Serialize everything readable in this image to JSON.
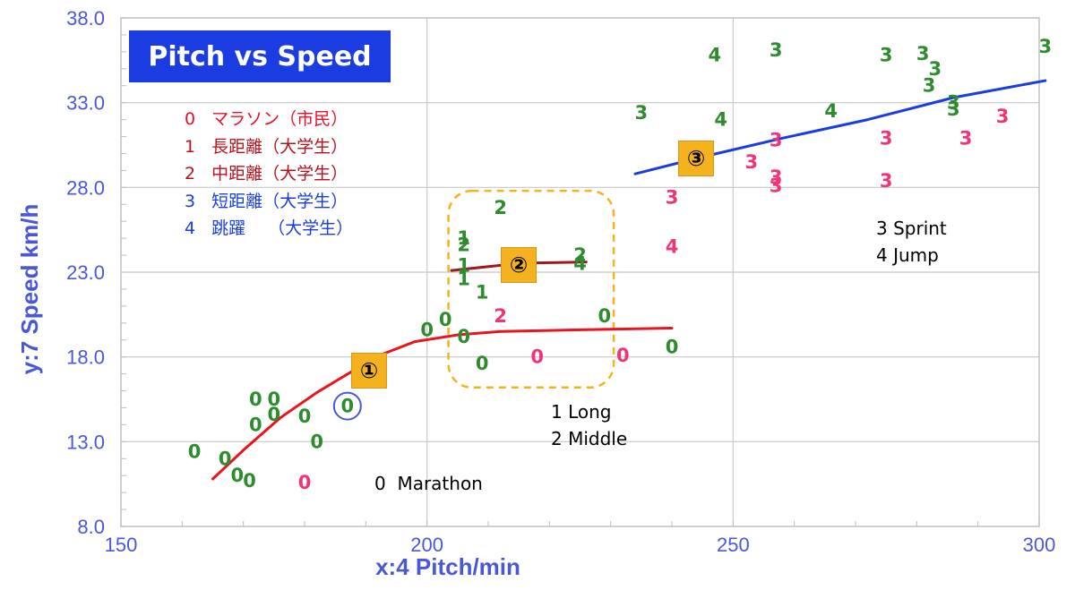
{
  "title": "Pitch vs Speed",
  "legend": [
    {
      "code": "0",
      "text": "マラソン（市民）",
      "color": "#e8102a"
    },
    {
      "code": "1",
      "text": "長距離（大学生）",
      "color": "#b8101c"
    },
    {
      "code": "2",
      "text": "中距離（大学生）",
      "color": "#b8101c"
    },
    {
      "code": "3",
      "text": "短距離（大学生）",
      "color": "#1a3ce0"
    },
    {
      "code": "4",
      "text": "跳躍　 （大学生）",
      "color": "#1a3ce0"
    }
  ],
  "annotations": {
    "marathon": "0  Marathon",
    "long_middle": "1 Long\n2 Middle",
    "sprint_jump": "3 Sprint\n4 Jump"
  },
  "badges": [
    "①",
    "②",
    "③"
  ],
  "chart_data": {
    "type": "scatter",
    "title": "Pitch vs Speed",
    "xlabel": "x:4 Pitch/min",
    "ylabel": "y:7 Speed km/h",
    "xlim": [
      150,
      300
    ],
    "ylim": [
      8.0,
      38.0
    ],
    "xticks": [
      "150",
      "200",
      "250",
      "300"
    ],
    "yticks": [
      "8.0",
      "13.0",
      "18.0",
      "23.0",
      "28.0",
      "33.0",
      "38.0"
    ],
    "grid": true,
    "colors": {
      "green": "#2e8b2e",
      "pink": "#f0337a",
      "red": "#e8141e",
      "darkred": "#a01820",
      "blue": "#1a3ce0"
    },
    "points": [
      {
        "label": "0",
        "x": 162,
        "y": 12.4,
        "color": "green"
      },
      {
        "label": "0",
        "x": 167,
        "y": 12.0,
        "color": "green"
      },
      {
        "label": "0",
        "x": 169,
        "y": 11.0,
        "color": "green"
      },
      {
        "label": "0",
        "x": 171,
        "y": 10.7,
        "color": "green"
      },
      {
        "label": "0",
        "x": 172,
        "y": 15.5,
        "color": "green"
      },
      {
        "label": "0",
        "x": 172,
        "y": 14.0,
        "color": "green"
      },
      {
        "label": "0",
        "x": 175,
        "y": 15.5,
        "color": "green"
      },
      {
        "label": "0",
        "x": 175,
        "y": 14.6,
        "color": "green"
      },
      {
        "label": "0",
        "x": 180,
        "y": 14.5,
        "color": "green"
      },
      {
        "label": "0",
        "x": 182,
        "y": 13.0,
        "color": "green"
      },
      {
        "label": "0",
        "x": 180,
        "y": 10.6,
        "color": "pink"
      },
      {
        "label": "0",
        "x": 187,
        "y": 15.1,
        "color": "green"
      },
      {
        "label": "0",
        "x": 200,
        "y": 19.6,
        "color": "green"
      },
      {
        "label": "0",
        "x": 203,
        "y": 20.2,
        "color": "green"
      },
      {
        "label": "0",
        "x": 206,
        "y": 19.2,
        "color": "green"
      },
      {
        "label": "0",
        "x": 209,
        "y": 17.6,
        "color": "green"
      },
      {
        "label": "0",
        "x": 218,
        "y": 18.0,
        "color": "pink"
      },
      {
        "label": "0",
        "x": 229,
        "y": 20.4,
        "color": "green"
      },
      {
        "label": "0",
        "x": 232,
        "y": 18.1,
        "color": "pink"
      },
      {
        "label": "0",
        "x": 240,
        "y": 18.6,
        "color": "green"
      },
      {
        "label": "1",
        "x": 206,
        "y": 25.0,
        "color": "green"
      },
      {
        "label": "1",
        "x": 206,
        "y": 23.4,
        "color": "green"
      },
      {
        "label": "1",
        "x": 206,
        "y": 22.6,
        "color": "green"
      },
      {
        "label": "1",
        "x": 209,
        "y": 21.8,
        "color": "green"
      },
      {
        "label": "2",
        "x": 206,
        "y": 24.6,
        "color": "green"
      },
      {
        "label": "2",
        "x": 212,
        "y": 26.8,
        "color": "green"
      },
      {
        "label": "2",
        "x": 212,
        "y": 20.4,
        "color": "pink"
      },
      {
        "label": "2",
        "x": 225,
        "y": 24.0,
        "color": "green"
      },
      {
        "label": "4",
        "x": 225,
        "y": 23.5,
        "color": "green"
      },
      {
        "label": "3",
        "x": 235,
        "y": 32.4,
        "color": "green"
      },
      {
        "label": "4",
        "x": 247,
        "y": 35.8,
        "color": "green"
      },
      {
        "label": "4",
        "x": 248,
        "y": 32.0,
        "color": "green"
      },
      {
        "label": "3",
        "x": 257,
        "y": 36.1,
        "color": "green"
      },
      {
        "label": "4",
        "x": 266,
        "y": 32.5,
        "color": "green"
      },
      {
        "label": "3",
        "x": 275,
        "y": 35.8,
        "color": "green"
      },
      {
        "label": "3",
        "x": 281,
        "y": 35.9,
        "color": "green"
      },
      {
        "label": "3",
        "x": 283,
        "y": 35.0,
        "color": "green"
      },
      {
        "label": "3",
        "x": 282,
        "y": 34.0,
        "color": "green"
      },
      {
        "label": "3",
        "x": 286,
        "y": 33.0,
        "color": "green"
      },
      {
        "label": "3",
        "x": 286,
        "y": 32.6,
        "color": "green"
      },
      {
        "label": "3",
        "x": 301,
        "y": 36.3,
        "color": "green"
      },
      {
        "label": "3",
        "x": 240,
        "y": 27.4,
        "color": "pink"
      },
      {
        "label": "4",
        "x": 240,
        "y": 24.5,
        "color": "pink"
      },
      {
        "label": "3",
        "x": 253,
        "y": 29.5,
        "color": "pink"
      },
      {
        "label": "3",
        "x": 257,
        "y": 30.8,
        "color": "pink"
      },
      {
        "label": "3",
        "x": 257,
        "y": 28.6,
        "color": "pink"
      },
      {
        "label": "3",
        "x": 257,
        "y": 28.1,
        "color": "pink"
      },
      {
        "label": "3",
        "x": 275,
        "y": 30.9,
        "color": "pink"
      },
      {
        "label": "3",
        "x": 275,
        "y": 28.4,
        "color": "pink"
      },
      {
        "label": "3",
        "x": 288,
        "y": 30.9,
        "color": "pink"
      },
      {
        "label": "3",
        "x": 294,
        "y": 32.2,
        "color": "pink"
      }
    ],
    "fit_lines": [
      {
        "color": "red",
        "points": [
          [
            165,
            10.8
          ],
          [
            170,
            12.5
          ],
          [
            176,
            14.4
          ],
          [
            182,
            15.9
          ],
          [
            188,
            17.2
          ],
          [
            193,
            18.2
          ],
          [
            198,
            18.9
          ],
          [
            205,
            19.3
          ],
          [
            212,
            19.5
          ],
          [
            225,
            19.6
          ],
          [
            240,
            19.7
          ]
        ]
      },
      {
        "color": "darkred",
        "points": [
          [
            204,
            23.1
          ],
          [
            212,
            23.4
          ],
          [
            218,
            23.55
          ],
          [
            226,
            23.6
          ]
        ]
      },
      {
        "color": "blue",
        "points": [
          [
            234,
            28.8
          ],
          [
            245,
            29.8
          ],
          [
            258,
            30.9
          ],
          [
            272,
            32.0
          ],
          [
            286,
            33.3
          ],
          [
            295,
            33.9
          ],
          [
            301,
            34.3
          ]
        ]
      }
    ],
    "highlighted_point": {
      "x": 187,
      "y": 15.1
    }
  }
}
